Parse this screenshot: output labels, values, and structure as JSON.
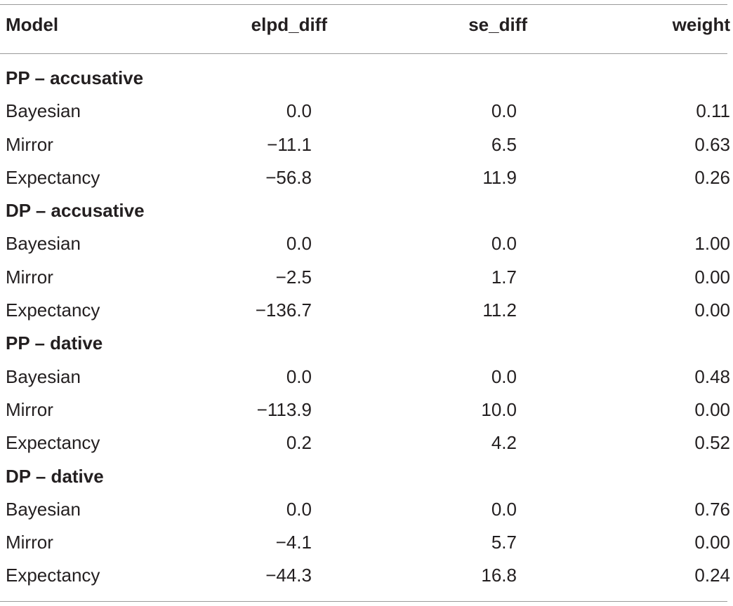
{
  "table": {
    "headers": {
      "model": "Model",
      "elpd_diff": "elpd_diff",
      "se_diff": "se_diff",
      "weight": "weight"
    },
    "groups": [
      {
        "label": "PP – accusative",
        "rows": [
          {
            "model": "Bayesian",
            "elpd_diff": "0.0",
            "se_diff": "0.0",
            "weight": "0.11"
          },
          {
            "model": "Mirror",
            "elpd_diff": "−11.1",
            "se_diff": "6.5",
            "weight": "0.63"
          },
          {
            "model": "Expectancy",
            "elpd_diff": "−56.8",
            "se_diff": "11.9",
            "weight": "0.26"
          }
        ]
      },
      {
        "label": "DP – accusative",
        "rows": [
          {
            "model": "Bayesian",
            "elpd_diff": "0.0",
            "se_diff": "0.0",
            "weight": "1.00"
          },
          {
            "model": "Mirror",
            "elpd_diff": "−2.5",
            "se_diff": "1.7",
            "weight": "0.00"
          },
          {
            "model": "Expectancy",
            "elpd_diff": "−136.7",
            "se_diff": "11.2",
            "weight": "0.00"
          }
        ]
      },
      {
        "label": "PP – dative",
        "rows": [
          {
            "model": "Bayesian",
            "elpd_diff": "0.0",
            "se_diff": "0.0",
            "weight": "0.48"
          },
          {
            "model": "Mirror",
            "elpd_diff": "−113.9",
            "se_diff": "10.0",
            "weight": "0.00"
          },
          {
            "model": "Expectancy",
            "elpd_diff": "0.2",
            "se_diff": "4.2",
            "weight": "0.52"
          }
        ]
      },
      {
        "label": "DP – dative",
        "rows": [
          {
            "model": "Bayesian",
            "elpd_diff": "0.0",
            "se_diff": "0.0",
            "weight": "0.76"
          },
          {
            "model": "Mirror",
            "elpd_diff": "−4.1",
            "se_diff": "5.7",
            "weight": "0.00"
          },
          {
            "model": "Expectancy",
            "elpd_diff": "−44.3",
            "se_diff": "16.8",
            "weight": "0.24"
          }
        ]
      }
    ]
  }
}
